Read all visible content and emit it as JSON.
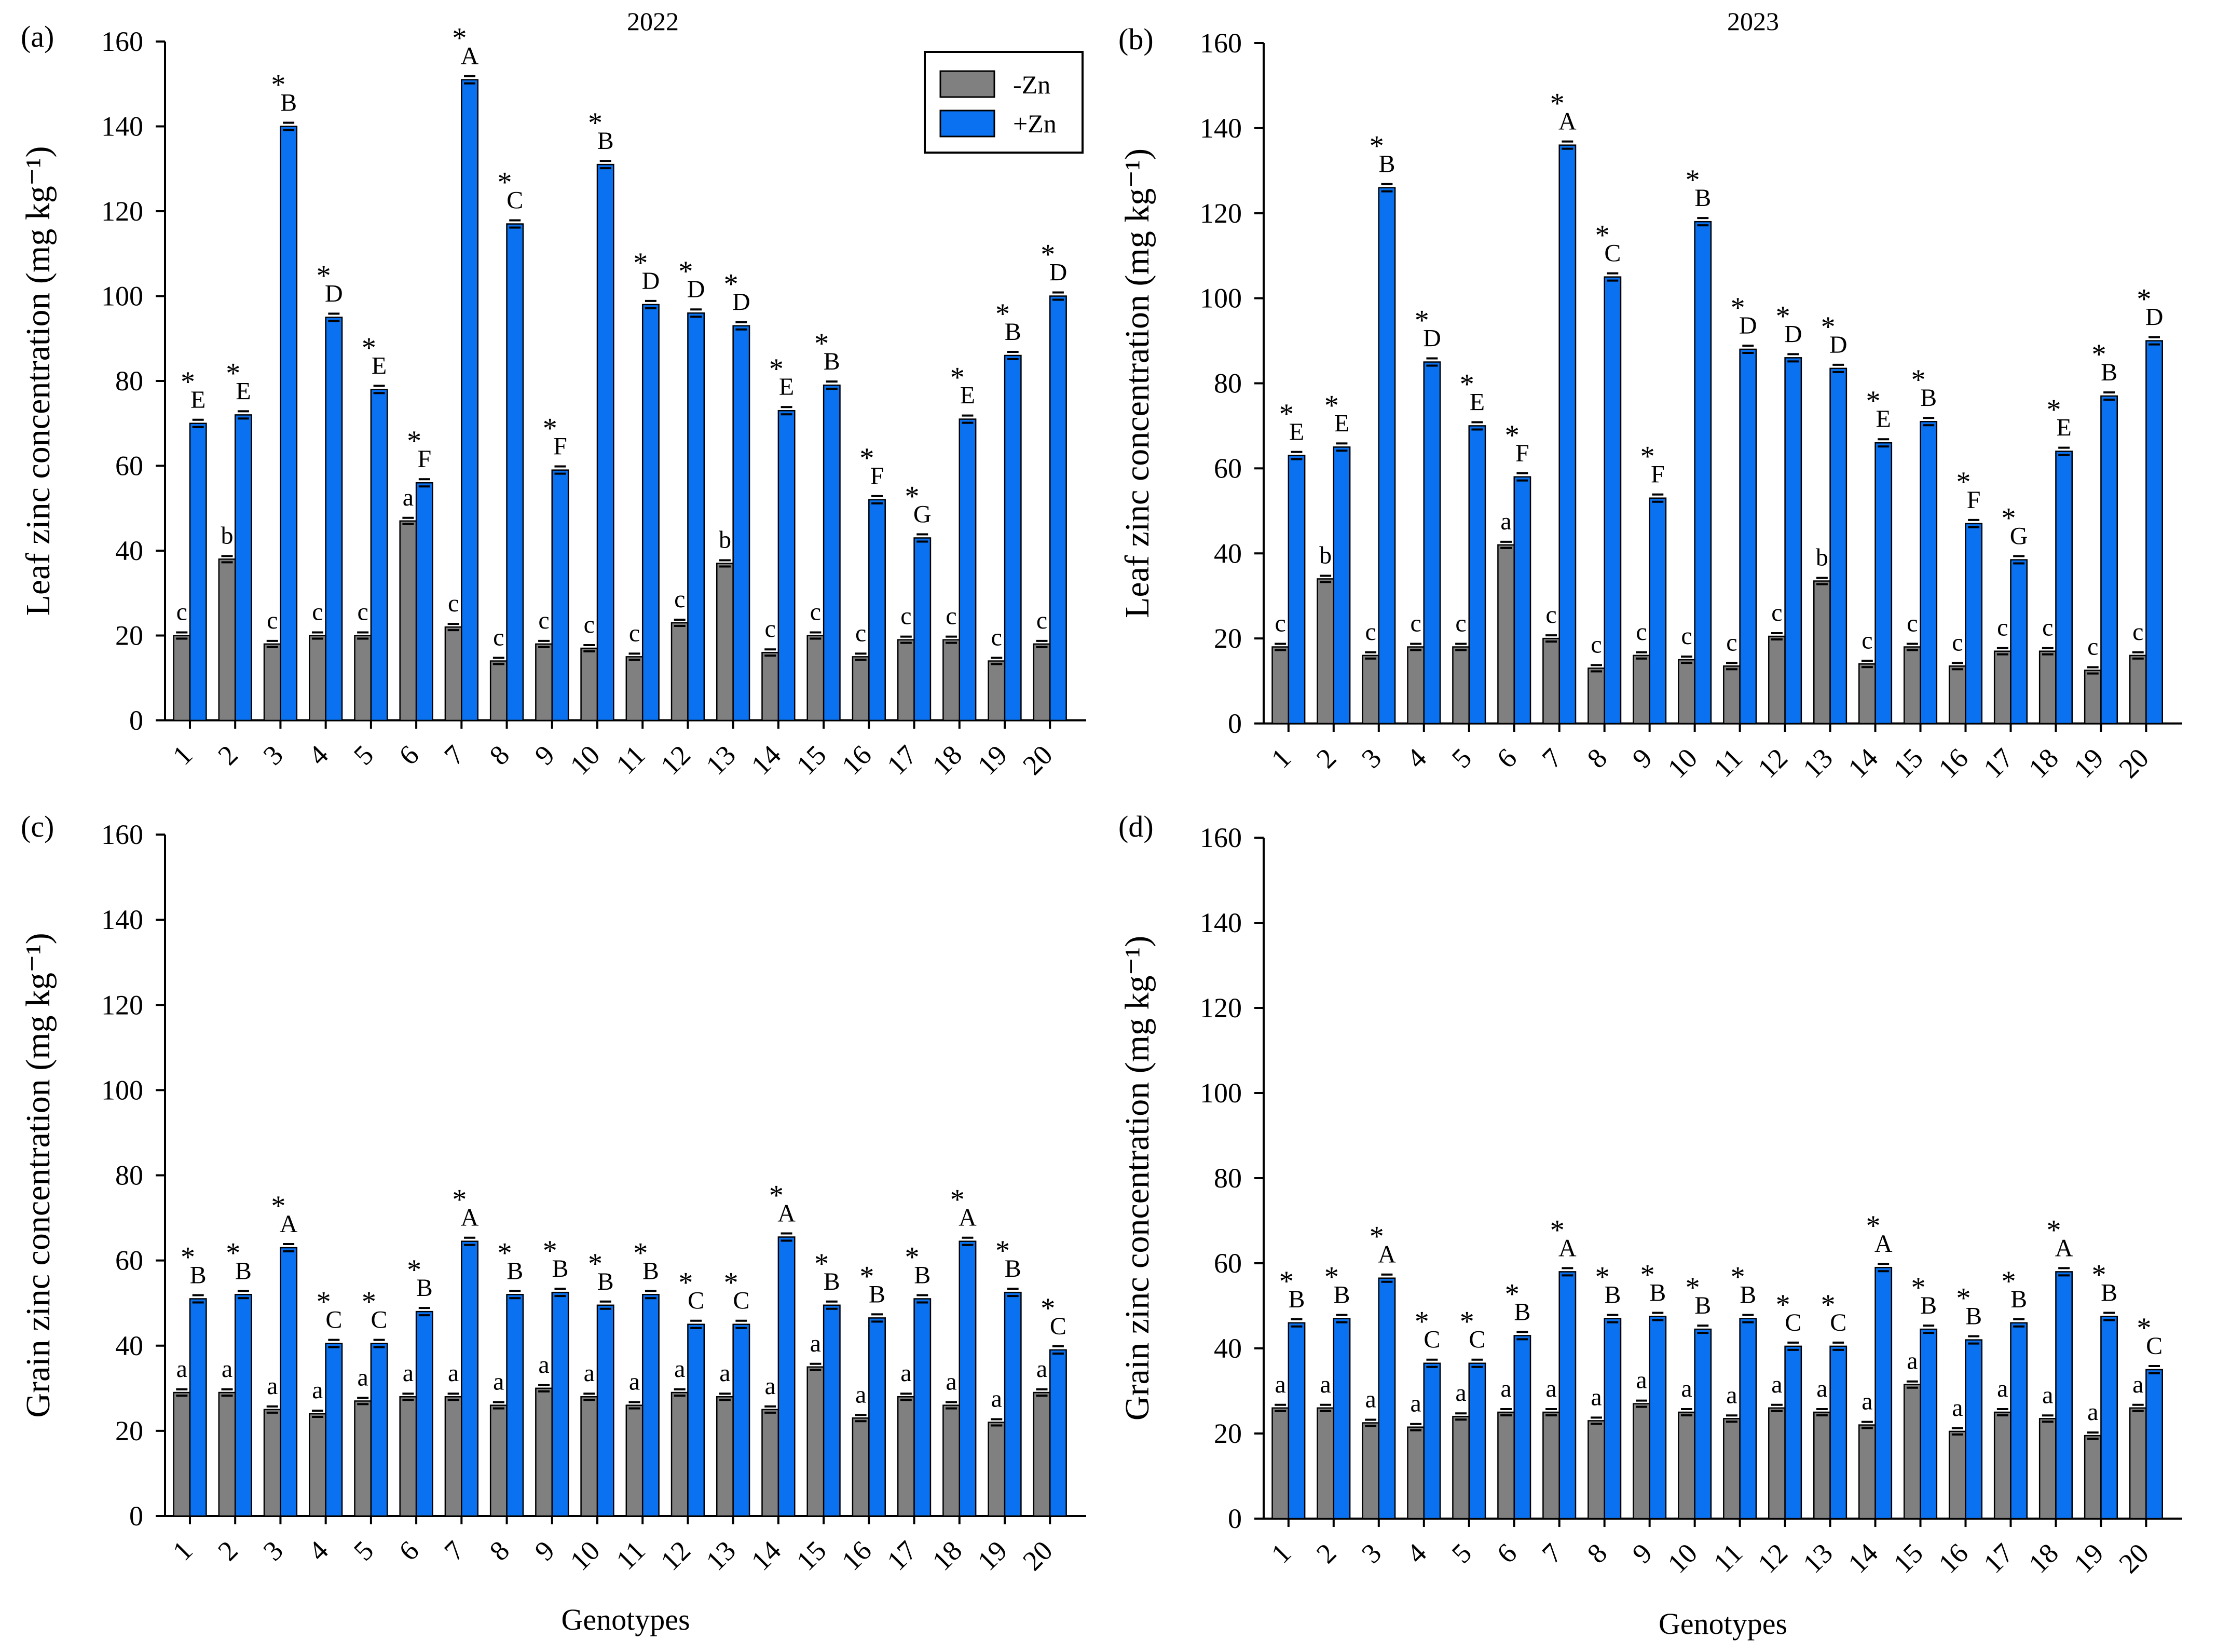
{
  "colors": {
    "minus_zn": "#808080",
    "plus_zn": "#0a72f0"
  },
  "legend": {
    "minus": "-Zn",
    "plus": "+Zn"
  },
  "chart_data": [
    {
      "type": "bar",
      "panel": "(a)",
      "title": "2022",
      "ylabel": "Leaf zinc concentration (mg kg⁻¹)",
      "xlabel": "",
      "ylim": [
        0,
        160
      ],
      "yticks": [
        0,
        20,
        40,
        60,
        80,
        100,
        120,
        140,
        160
      ],
      "categories": [
        "1",
        "2",
        "3",
        "4",
        "5",
        "6",
        "7",
        "8",
        "9",
        "10",
        "11",
        "12",
        "13",
        "14",
        "15",
        "16",
        "17",
        "18",
        "19",
        "20"
      ],
      "series": [
        {
          "name": "-Zn",
          "values": [
            20,
            38,
            18,
            20,
            20,
            47,
            22,
            14,
            18,
            17,
            15,
            23,
            37,
            16,
            20,
            15,
            19,
            19,
            14,
            18
          ],
          "labels": [
            "c",
            "b",
            "c",
            "c",
            "c",
            "a",
            "c",
            "c",
            "c",
            "c",
            "c",
            "c",
            "b",
            "c",
            "c",
            "c",
            "c",
            "c",
            "c",
            "c"
          ]
        },
        {
          "name": "+Zn",
          "values": [
            70,
            72,
            140,
            95,
            78,
            56,
            151,
            117,
            59,
            131,
            98,
            96,
            93,
            73,
            79,
            52,
            43,
            71,
            86,
            100
          ],
          "labels": [
            "E",
            "E",
            "B",
            "D",
            "E",
            "F",
            "A",
            "C",
            "F",
            "B",
            "D",
            "D",
            "D",
            "E",
            "B",
            "F",
            "G",
            "E",
            "B",
            "D"
          ],
          "stars": [
            true,
            true,
            true,
            true,
            true,
            true,
            true,
            true,
            true,
            true,
            true,
            true,
            true,
            true,
            true,
            true,
            true,
            true,
            true,
            true
          ]
        }
      ]
    },
    {
      "type": "bar",
      "panel": "(b)",
      "title": "2023",
      "ylabel": "Leaf zinc concentration (mg kg⁻¹)",
      "xlabel": "",
      "ylim": [
        0,
        160
      ],
      "yticks": [
        0,
        20,
        40,
        60,
        80,
        100,
        120,
        140,
        160
      ],
      "categories": [
        "1",
        "2",
        "3",
        "4",
        "5",
        "6",
        "7",
        "8",
        "9",
        "10",
        "11",
        "12",
        "13",
        "14",
        "15",
        "16",
        "17",
        "18",
        "19",
        "20"
      ],
      "series": [
        {
          "name": "-Zn",
          "values": [
            18,
            34,
            16,
            18,
            18,
            42,
            20,
            13,
            16,
            15,
            13.5,
            20.5,
            33.5,
            14,
            18,
            13.5,
            17,
            17,
            12.5,
            16
          ],
          "labels": [
            "c",
            "b",
            "c",
            "c",
            "c",
            "a",
            "c",
            "c",
            "c",
            "c",
            "c",
            "c",
            "b",
            "c",
            "c",
            "c",
            "c",
            "c",
            "c",
            "c"
          ]
        },
        {
          "name": "+Zn",
          "values": [
            63,
            65,
            126,
            85,
            70,
            58,
            136,
            105,
            53,
            118,
            88,
            86,
            83.5,
            66,
            71,
            47,
            38.5,
            64,
            77,
            90
          ],
          "labels": [
            "E",
            "E",
            "B",
            "D",
            "E",
            "F",
            "A",
            "C",
            "F",
            "B",
            "D",
            "D",
            "D",
            "E",
            "B",
            "F",
            "G",
            "E",
            "B",
            "D"
          ],
          "stars": [
            true,
            true,
            true,
            true,
            true,
            true,
            true,
            true,
            true,
            true,
            true,
            true,
            true,
            true,
            true,
            true,
            true,
            true,
            true,
            true
          ]
        }
      ]
    },
    {
      "type": "bar",
      "panel": "(c)",
      "title": "",
      "ylabel": "Grain zinc concentration (mg kg⁻¹)",
      "xlabel": "Genotypes",
      "ylim": [
        0,
        160
      ],
      "yticks": [
        0,
        20,
        40,
        60,
        80,
        100,
        120,
        140,
        160
      ],
      "categories": [
        "1",
        "2",
        "3",
        "4",
        "5",
        "6",
        "7",
        "8",
        "9",
        "10",
        "11",
        "12",
        "13",
        "14",
        "15",
        "16",
        "17",
        "18",
        "19",
        "20"
      ],
      "series": [
        {
          "name": "-Zn",
          "values": [
            29,
            29,
            25,
            24,
            27,
            28,
            28,
            26,
            30,
            28,
            26,
            29,
            28,
            25,
            35,
            23,
            28,
            26,
            22,
            29
          ],
          "labels": [
            "a",
            "a",
            "a",
            "a",
            "a",
            "a",
            "a",
            "a",
            "a",
            "a",
            "a",
            "a",
            "a",
            "a",
            "a",
            "a",
            "a",
            "a",
            "a",
            "a"
          ]
        },
        {
          "name": "+Zn",
          "values": [
            51,
            52,
            63,
            40.5,
            40.5,
            48,
            64.5,
            52,
            52.5,
            49.5,
            52,
            45,
            45,
            65.5,
            49.5,
            46.5,
            51,
            64.5,
            52.5,
            39
          ],
          "labels": [
            "B",
            "B",
            "A",
            "C",
            "C",
            "B",
            "A",
            "B",
            "B",
            "B",
            "B",
            "C",
            "C",
            "A",
            "B",
            "B",
            "B",
            "A",
            "B",
            "C"
          ],
          "stars": [
            true,
            true,
            true,
            true,
            true,
            true,
            true,
            true,
            true,
            true,
            true,
            true,
            true,
            true,
            true,
            true,
            true,
            true,
            true,
            true
          ]
        }
      ]
    },
    {
      "type": "bar",
      "panel": "(d)",
      "title": "",
      "ylabel": "Grain zinc concentration (mg kg⁻¹)",
      "xlabel": "Genotypes",
      "ylim": [
        0,
        160
      ],
      "yticks": [
        0,
        20,
        40,
        60,
        80,
        100,
        120,
        140,
        160
      ],
      "categories": [
        "1",
        "2",
        "3",
        "4",
        "5",
        "6",
        "7",
        "8",
        "9",
        "10",
        "11",
        "12",
        "13",
        "14",
        "15",
        "16",
        "17",
        "18",
        "19",
        "20"
      ],
      "series": [
        {
          "name": "-Zn",
          "values": [
            26,
            26,
            22.5,
            21.5,
            24,
            25,
            25,
            23,
            27,
            25,
            23.5,
            26,
            25,
            22,
            31.5,
            20.5,
            25,
            23.5,
            19.5,
            26
          ],
          "labels": [
            "a",
            "a",
            "a",
            "a",
            "a",
            "a",
            "a",
            "a",
            "a",
            "a",
            "a",
            "a",
            "a",
            "a",
            "a",
            "a",
            "a",
            "a",
            "a",
            "a"
          ]
        },
        {
          "name": "+Zn",
          "values": [
            46,
            47,
            56.5,
            36.5,
            36.5,
            43,
            58,
            47,
            47.5,
            44.5,
            47,
            40.5,
            40.5,
            59,
            44.5,
            42,
            46,
            58,
            47.5,
            35
          ],
          "labels": [
            "B",
            "B",
            "A",
            "C",
            "C",
            "B",
            "A",
            "B",
            "B",
            "B",
            "B",
            "C",
            "C",
            "A",
            "B",
            "B",
            "B",
            "A",
            "B",
            "C"
          ],
          "stars": [
            true,
            true,
            true,
            true,
            true,
            true,
            true,
            true,
            true,
            true,
            true,
            true,
            true,
            true,
            true,
            true,
            true,
            true,
            true,
            true
          ]
        }
      ]
    }
  ]
}
